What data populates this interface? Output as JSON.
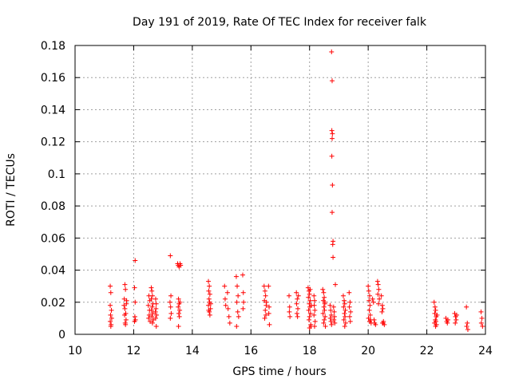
{
  "chart_data": {
    "type": "scatter",
    "title": "Day 191 of 2019, Rate Of TEC Index for receiver falk",
    "xlabel": "GPS time / hours",
    "ylabel": "ROTI / TECUs",
    "xlim": [
      10,
      24
    ],
    "ylim": [
      0,
      0.18
    ],
    "xticks": [
      10,
      12,
      14,
      16,
      18,
      20,
      22,
      24
    ],
    "xtick_labels": [
      "10",
      "12",
      "14",
      "16",
      "18",
      "20",
      "22",
      "24"
    ],
    "yticks": [
      0,
      0.02,
      0.04,
      0.06,
      0.08,
      0.1,
      0.12,
      0.14,
      0.16,
      0.18
    ],
    "ytick_labels": [
      "0",
      "0.02",
      "0.04",
      "0.06",
      "0.08",
      "0.1",
      "0.12",
      "0.14",
      "0.16",
      "0.18"
    ],
    "grid": true,
    "marker": "+",
    "color": "#ff0000",
    "series": [
      {
        "name": "ROTI",
        "points": [
          [
            11.2,
            0.03
          ],
          [
            11.22,
            0.026
          ],
          [
            11.2,
            0.018
          ],
          [
            11.24,
            0.015
          ],
          [
            11.21,
            0.012
          ],
          [
            11.2,
            0.008
          ],
          [
            11.23,
            0.006
          ],
          [
            11.25,
            0.01
          ],
          [
            11.22,
            0.005
          ],
          [
            11.7,
            0.031
          ],
          [
            11.72,
            0.028
          ],
          [
            11.68,
            0.022
          ],
          [
            11.75,
            0.019
          ],
          [
            11.7,
            0.016
          ],
          [
            11.73,
            0.013
          ],
          [
            11.69,
            0.012
          ],
          [
            11.74,
            0.009
          ],
          [
            11.71,
            0.007
          ],
          [
            11.72,
            0.006
          ],
          [
            11.76,
            0.021
          ],
          [
            11.67,
            0.018
          ],
          [
            12.05,
            0.046
          ],
          [
            12.03,
            0.029
          ],
          [
            12.05,
            0.02
          ],
          [
            12.04,
            0.011
          ],
          [
            12.06,
            0.009
          ],
          [
            12.03,
            0.008
          ],
          [
            12.52,
            0.024
          ],
          [
            12.55,
            0.021
          ],
          [
            12.5,
            0.018
          ],
          [
            12.54,
            0.015
          ],
          [
            12.53,
            0.012
          ],
          [
            12.51,
            0.01
          ],
          [
            12.56,
            0.008
          ],
          [
            12.6,
            0.029
          ],
          [
            12.62,
            0.027
          ],
          [
            12.64,
            0.024
          ],
          [
            12.6,
            0.022
          ],
          [
            12.66,
            0.019
          ],
          [
            12.63,
            0.017
          ],
          [
            12.61,
            0.015
          ],
          [
            12.65,
            0.013
          ],
          [
            12.62,
            0.011
          ],
          [
            12.67,
            0.009
          ],
          [
            12.64,
            0.007
          ],
          [
            12.75,
            0.022
          ],
          [
            12.77,
            0.019
          ],
          [
            12.76,
            0.016
          ],
          [
            12.74,
            0.014
          ],
          [
            12.78,
            0.012
          ],
          [
            12.75,
            0.01
          ],
          [
            12.77,
            0.005
          ],
          [
            13.25,
            0.049
          ],
          [
            13.27,
            0.024
          ],
          [
            13.24,
            0.02
          ],
          [
            13.26,
            0.017
          ],
          [
            13.28,
            0.013
          ],
          [
            13.25,
            0.01
          ],
          [
            13.5,
            0.044
          ],
          [
            13.52,
            0.043
          ],
          [
            13.55,
            0.042
          ],
          [
            13.58,
            0.044
          ],
          [
            13.6,
            0.043
          ],
          [
            13.53,
            0.022
          ],
          [
            13.55,
            0.019
          ],
          [
            13.52,
            0.017
          ],
          [
            13.57,
            0.015
          ],
          [
            13.54,
            0.013
          ],
          [
            13.56,
            0.011
          ],
          [
            13.58,
            0.02
          ],
          [
            13.53,
            0.005
          ],
          [
            14.55,
            0.033
          ],
          [
            14.58,
            0.03
          ],
          [
            14.56,
            0.027
          ],
          [
            14.6,
            0.025
          ],
          [
            14.57,
            0.022
          ],
          [
            14.59,
            0.02
          ],
          [
            14.55,
            0.018
          ],
          [
            14.62,
            0.016
          ],
          [
            14.58,
            0.014
          ],
          [
            14.6,
            0.012
          ],
          [
            14.63,
            0.019
          ],
          [
            14.56,
            0.015
          ],
          [
            15.1,
            0.03
          ],
          [
            15.12,
            0.022
          ],
          [
            15.14,
            0.018
          ],
          [
            15.2,
            0.026
          ],
          [
            15.25,
            0.011
          ],
          [
            15.28,
            0.007
          ],
          [
            15.22,
            0.016
          ],
          [
            15.5,
            0.036
          ],
          [
            15.53,
            0.03
          ],
          [
            15.56,
            0.024
          ],
          [
            15.52,
            0.02
          ],
          [
            15.55,
            0.014
          ],
          [
            15.58,
            0.011
          ],
          [
            15.51,
            0.005
          ],
          [
            15.72,
            0.037
          ],
          [
            15.74,
            0.026
          ],
          [
            15.75,
            0.02
          ],
          [
            15.73,
            0.016
          ],
          [
            16.45,
            0.03
          ],
          [
            16.48,
            0.027
          ],
          [
            16.5,
            0.024
          ],
          [
            16.46,
            0.021
          ],
          [
            16.52,
            0.018
          ],
          [
            16.49,
            0.015
          ],
          [
            16.51,
            0.012
          ],
          [
            16.47,
            0.01
          ],
          [
            16.53,
            0.02
          ],
          [
            16.6,
            0.03
          ],
          [
            16.62,
            0.017
          ],
          [
            16.61,
            0.013
          ],
          [
            16.63,
            0.006
          ],
          [
            17.3,
            0.024
          ],
          [
            17.32,
            0.017
          ],
          [
            17.31,
            0.014
          ],
          [
            17.33,
            0.011
          ],
          [
            17.55,
            0.026
          ],
          [
            17.58,
            0.022
          ],
          [
            17.56,
            0.019
          ],
          [
            17.6,
            0.016
          ],
          [
            17.57,
            0.013
          ],
          [
            17.59,
            0.011
          ],
          [
            17.62,
            0.024
          ],
          [
            17.95,
            0.029
          ],
          [
            17.98,
            0.027
          ],
          [
            18.0,
            0.025
          ],
          [
            17.96,
            0.023
          ],
          [
            18.02,
            0.021
          ],
          [
            17.99,
            0.019
          ],
          [
            18.01,
            0.017
          ],
          [
            17.97,
            0.015
          ],
          [
            18.03,
            0.013
          ],
          [
            18.0,
            0.011
          ],
          [
            17.98,
            0.009
          ],
          [
            18.04,
            0.006
          ],
          [
            18.0,
            0.004
          ],
          [
            18.05,
            0.005
          ],
          [
            18.02,
            0.028
          ],
          [
            18.06,
            0.018
          ],
          [
            18.15,
            0.024
          ],
          [
            18.17,
            0.021
          ],
          [
            18.16,
            0.018
          ],
          [
            18.18,
            0.015
          ],
          [
            18.15,
            0.012
          ],
          [
            18.19,
            0.008
          ],
          [
            18.17,
            0.005
          ],
          [
            18.45,
            0.028
          ],
          [
            18.48,
            0.026
          ],
          [
            18.5,
            0.023
          ],
          [
            18.47,
            0.021
          ],
          [
            18.52,
            0.019
          ],
          [
            18.49,
            0.017
          ],
          [
            18.51,
            0.015
          ],
          [
            18.46,
            0.013
          ],
          [
            18.53,
            0.011
          ],
          [
            18.5,
            0.009
          ],
          [
            18.48,
            0.007
          ],
          [
            18.54,
            0.005
          ],
          [
            18.52,
            0.02
          ],
          [
            18.75,
            0.176
          ],
          [
            18.77,
            0.158
          ],
          [
            18.76,
            0.127
          ],
          [
            18.78,
            0.125
          ],
          [
            18.77,
            0.122
          ],
          [
            18.76,
            0.111
          ],
          [
            18.78,
            0.093
          ],
          [
            18.77,
            0.076
          ],
          [
            18.8,
            0.058
          ],
          [
            18.79,
            0.056
          ],
          [
            18.8,
            0.048
          ],
          [
            18.7,
            0.018
          ],
          [
            18.72,
            0.015
          ],
          [
            18.74,
            0.012
          ],
          [
            18.71,
            0.01
          ],
          [
            18.73,
            0.008
          ],
          [
            18.75,
            0.006
          ],
          [
            18.82,
            0.017
          ],
          [
            18.84,
            0.014
          ],
          [
            18.85,
            0.011
          ],
          [
            18.83,
            0.009
          ],
          [
            18.86,
            0.007
          ],
          [
            18.88,
            0.031
          ],
          [
            19.15,
            0.024
          ],
          [
            19.18,
            0.021
          ],
          [
            19.2,
            0.019
          ],
          [
            19.16,
            0.017
          ],
          [
            19.22,
            0.015
          ],
          [
            19.19,
            0.013
          ],
          [
            19.21,
            0.011
          ],
          [
            19.17,
            0.009
          ],
          [
            19.23,
            0.007
          ],
          [
            19.2,
            0.005
          ],
          [
            19.35,
            0.026
          ],
          [
            19.38,
            0.02
          ],
          [
            19.36,
            0.017
          ],
          [
            19.4,
            0.014
          ],
          [
            19.37,
            0.011
          ],
          [
            19.39,
            0.008
          ],
          [
            20.0,
            0.03
          ],
          [
            20.02,
            0.027
          ],
          [
            20.05,
            0.024
          ],
          [
            20.03,
            0.021
          ],
          [
            20.06,
            0.018
          ],
          [
            20.04,
            0.015
          ],
          [
            20.07,
            0.012
          ],
          [
            20.01,
            0.01
          ],
          [
            20.08,
            0.009
          ],
          [
            20.05,
            0.008
          ],
          [
            20.1,
            0.007
          ],
          [
            20.15,
            0.022
          ],
          [
            20.18,
            0.02
          ],
          [
            20.2,
            0.009
          ],
          [
            20.22,
            0.007
          ],
          [
            20.25,
            0.006
          ],
          [
            20.32,
            0.033
          ],
          [
            20.34,
            0.031
          ],
          [
            20.36,
            0.028
          ],
          [
            20.33,
            0.025
          ],
          [
            20.38,
            0.022
          ],
          [
            20.35,
            0.019
          ],
          [
            20.45,
            0.024
          ],
          [
            20.48,
            0.018
          ],
          [
            20.5,
            0.016
          ],
          [
            20.47,
            0.014
          ],
          [
            20.52,
            0.008
          ],
          [
            20.49,
            0.007
          ],
          [
            20.55,
            0.006
          ],
          [
            20.51,
            0.007
          ],
          [
            22.25,
            0.02
          ],
          [
            22.28,
            0.017
          ],
          [
            22.3,
            0.015
          ],
          [
            22.27,
            0.013
          ],
          [
            22.32,
            0.011
          ],
          [
            22.29,
            0.009
          ],
          [
            22.31,
            0.008
          ],
          [
            22.26,
            0.007
          ],
          [
            22.33,
            0.006
          ],
          [
            22.3,
            0.005
          ],
          [
            22.35,
            0.012
          ],
          [
            22.65,
            0.01
          ],
          [
            22.68,
            0.008
          ],
          [
            22.7,
            0.007
          ],
          [
            22.72,
            0.009
          ],
          [
            22.95,
            0.013
          ],
          [
            22.98,
            0.011
          ],
          [
            23.0,
            0.009
          ],
          [
            22.97,
            0.007
          ],
          [
            23.02,
            0.012
          ],
          [
            23.35,
            0.017
          ],
          [
            23.38,
            0.007
          ],
          [
            23.36,
            0.005
          ],
          [
            23.4,
            0.003
          ],
          [
            23.85,
            0.014
          ],
          [
            23.88,
            0.01
          ],
          [
            23.86,
            0.007
          ],
          [
            23.9,
            0.005
          ]
        ]
      }
    ]
  }
}
